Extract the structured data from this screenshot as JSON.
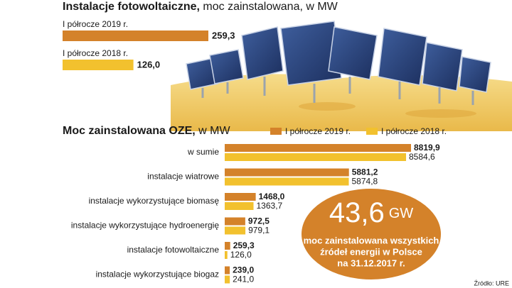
{
  "chart_data": [
    {
      "type": "bar",
      "title": "Instalacje fotowoltaiczne,",
      "subtitle": "moc zainstalowana, w MW",
      "categories": [
        "I półrocze 2019 r.",
        "I półrocze 2018 r."
      ],
      "values": [
        259.3,
        126.0
      ],
      "value_labels": [
        "259,3",
        "126,0"
      ],
      "colors": [
        "#d4822a",
        "#f2c12e"
      ]
    },
    {
      "type": "grouped-bar",
      "title": "Moc zainstalowana OZE,",
      "subtitle": "w MW",
      "categories": [
        "w sumie",
        "instalacje wiatrowe",
        "instalacje wykorzystujące biomasę",
        "instalacje wykorzystujące hydroenergię",
        "instalacje fotowoltaiczne",
        "instalacje wykorzystujące biogaz"
      ],
      "series": [
        {
          "name": "I półrocze 2019 r.",
          "color": "#d4822a",
          "values": [
            8819.9,
            5881.2,
            1468.0,
            972.5,
            259.3,
            239.0
          ],
          "value_labels": [
            "8819,9",
            "5881,2",
            "1468,0",
            "972,5",
            "259,3",
            "239,0"
          ]
        },
        {
          "name": "I półrocze 2018 r.",
          "color": "#f2c12e",
          "values": [
            8584.6,
            5874.8,
            1363.7,
            979.1,
            126.0,
            241.0
          ],
          "value_labels": [
            "8584,6",
            "5874,8",
            "1363,7",
            "979,1",
            "126,0",
            "241,0"
          ]
        }
      ]
    }
  ],
  "callout": {
    "value": "43,6",
    "unit": "GW",
    "lines": [
      "moc zainstalowana wszystkich",
      "źródeł energii w Polsce",
      "na 31.12.2017 r."
    ]
  },
  "source": "Źródło: URE"
}
